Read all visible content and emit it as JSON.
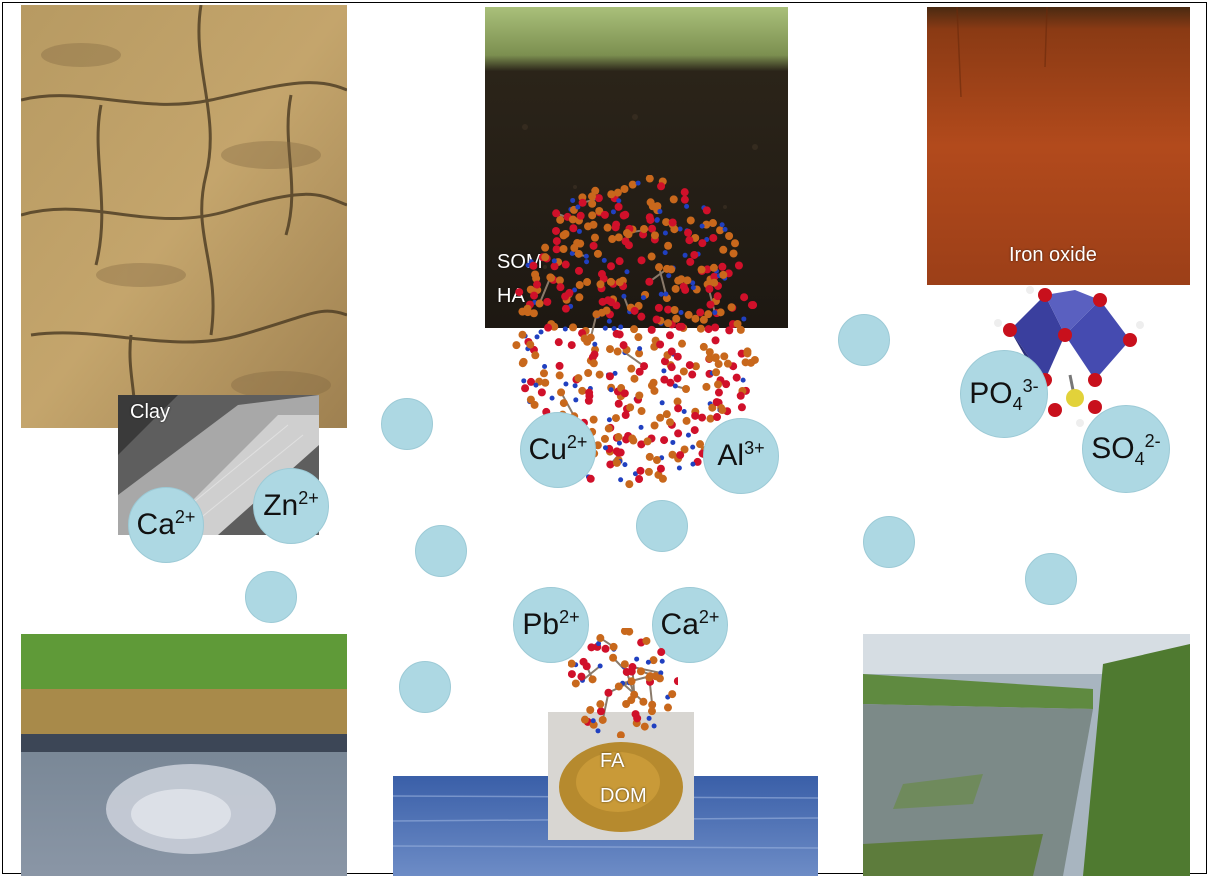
{
  "labels": {
    "clay": "Clay",
    "som": "SOM",
    "ha": "HA",
    "iron_oxide": "Iron oxide",
    "fa": "FA",
    "dom": "DOM"
  },
  "ions": [
    {
      "sym": "Ca",
      "charge": "2+"
    },
    {
      "sym": "Zn",
      "charge": "2+"
    },
    {
      "sym": "Cu",
      "charge": "2+"
    },
    {
      "sym": "Al",
      "charge": "3+"
    },
    {
      "sym": "PO",
      "sub": "4",
      "charge": "3-"
    },
    {
      "sym": "SO",
      "sub": "4",
      "charge": "2-"
    },
    {
      "sym": "Pb",
      "charge": "2+"
    },
    {
      "sym": "Ca",
      "charge": "2+"
    }
  ],
  "colors": {
    "ion_fill": "#add8e3",
    "atom_carbon": "#c8681c",
    "atom_oxygen": "#d0102a",
    "atom_nitrogen": "#2040c0",
    "octahedron": "#3a3f9e"
  }
}
